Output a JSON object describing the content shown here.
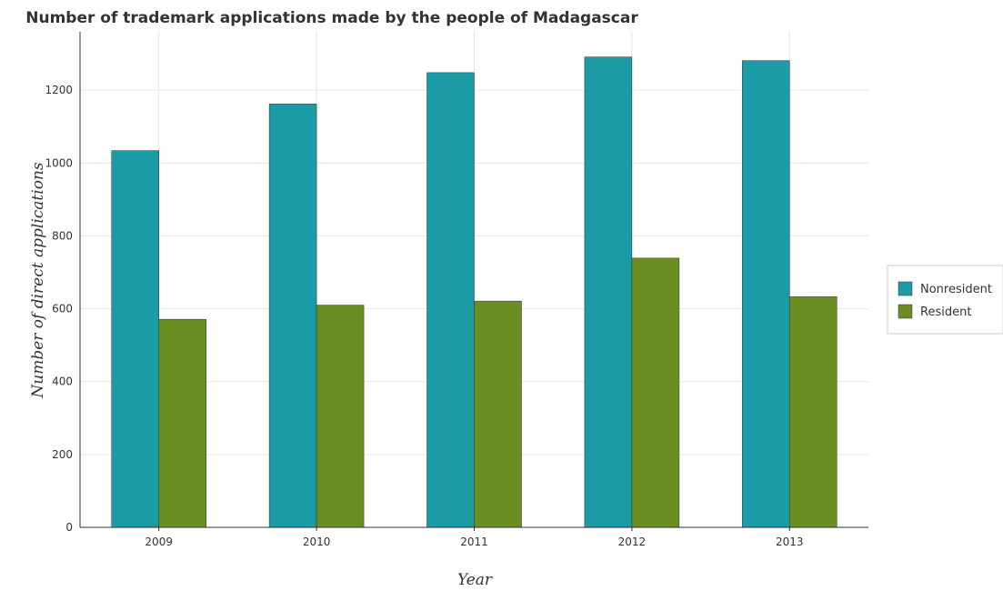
{
  "chart_data": {
    "type": "bar",
    "title": "Number of trademark applications made by the people of Madagascar",
    "xlabel": "Year",
    "ylabel": "Number of direct applications",
    "categories": [
      "2009",
      "2010",
      "2011",
      "2012",
      "2013"
    ],
    "series": [
      {
        "name": "Nonresident",
        "color": "#1a9ba6",
        "values": [
          1034,
          1162,
          1248,
          1291,
          1281
        ]
      },
      {
        "name": "Resident",
        "color": "#6b8e23",
        "values": [
          571,
          610,
          621,
          739,
          633
        ]
      }
    ],
    "ylim": [
      0,
      1360
    ],
    "yticks": [
      0,
      200,
      400,
      600,
      800,
      1000,
      1200
    ],
    "grid": true,
    "legend_position": "right"
  }
}
